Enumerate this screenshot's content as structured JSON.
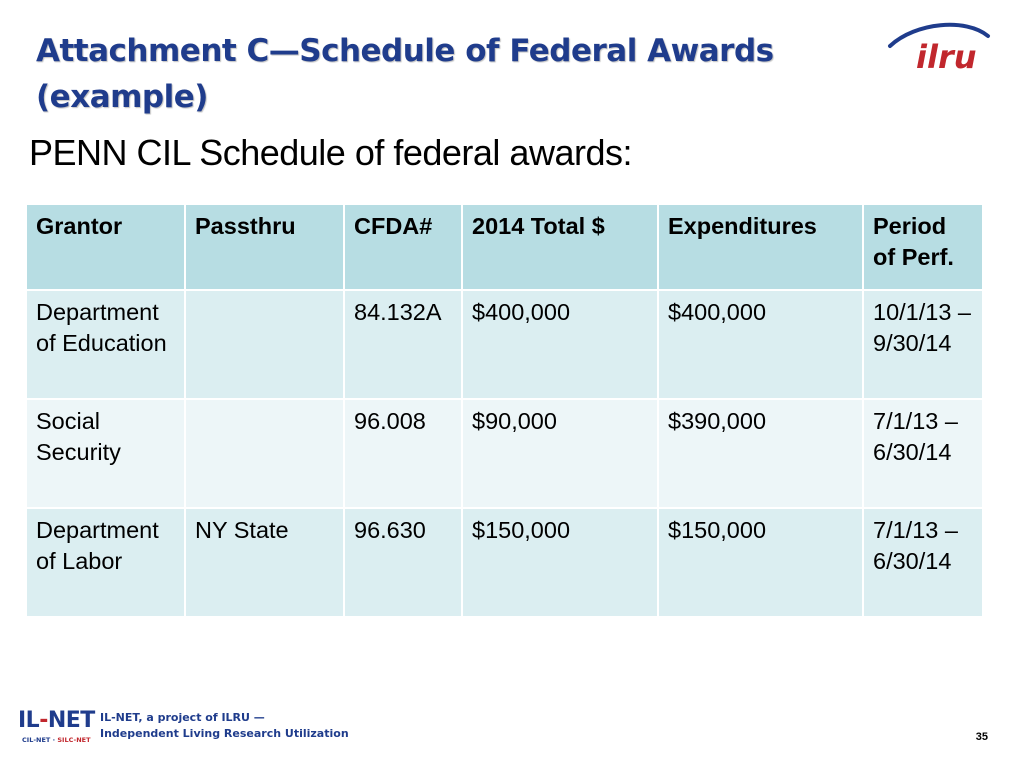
{
  "slide": {
    "title": "Attachment C—Schedule of Federal Awards (example)",
    "subtitle": "PENN CIL Schedule of federal awards:",
    "page_number": "35"
  },
  "logo_top": {
    "text": "ilru",
    "color": "#c1272d",
    "swoosh_color": "#1f3c8c"
  },
  "table": {
    "headers": [
      "Grantor",
      "Passthru",
      "CFDA#",
      "2014 Total $",
      "Expenditures",
      "Period of Perf."
    ],
    "rows": [
      [
        "Department of Education",
        "",
        "84.132A",
        "$400,000",
        "$400,000",
        "10/1/13 – 9/30/14"
      ],
      [
        "Social Security",
        "",
        "96.008",
        "$90,000",
        "$390,000",
        "7/1/13 – 6/30/14"
      ],
      [
        "Department of Labor",
        "NY State",
        "96.630",
        "$150,000",
        "$150,000",
        "7/1/13 – 6/30/14"
      ]
    ]
  },
  "footer": {
    "logo_left": "IL",
    "logo_dash": "-",
    "logo_right": "NET",
    "logo_sub_a": "CIL-NET · ",
    "logo_sub_b": "SILC-NET",
    "line1": "IL-NET, a project of ILRU —",
    "line2": "Independent Living Research Utilization"
  }
}
